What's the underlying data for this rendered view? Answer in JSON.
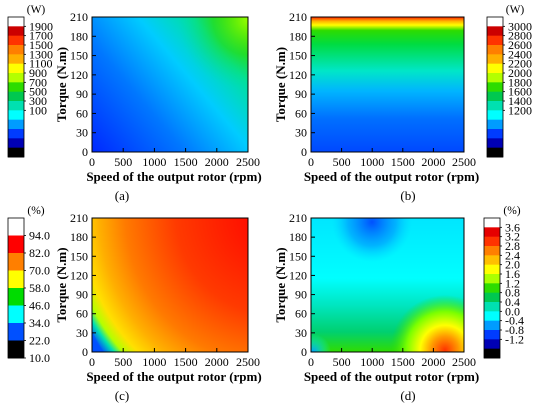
{
  "chart_data": [
    {
      "type": "heatmap",
      "panel_label": "(a)",
      "xlabel": "Speed of the output rotor (rpm)",
      "ylabel": "Torque (N.m)",
      "x_ticks": [
        "0",
        "500",
        "1000",
        "1500",
        "2000",
        "2500"
      ],
      "y_ticks": [
        "0",
        "30",
        "60",
        "90",
        "120",
        "150",
        "180",
        "210"
      ],
      "xlim": [
        0,
        2500
      ],
      "ylim": [
        0,
        210
      ],
      "colorbar": {
        "unit": "(W)",
        "position": "left",
        "ticks": [
          "1900",
          "1700",
          "1500",
          "1300",
          "1100",
          "900",
          "700",
          "500",
          "300",
          "100"
        ],
        "colors": [
          "#ffffff",
          "#cc0000",
          "#ff3300",
          "#ff7f00",
          "#ffb000",
          "#ffff00",
          "#b4ff00",
          "#2ddc00",
          "#00c850",
          "#00e0b0",
          "#00ffff",
          "#009cff",
          "#003cff",
          "#0000b4",
          "#000000"
        ]
      }
    },
    {
      "type": "heatmap",
      "panel_label": "(b)",
      "xlabel": "Speed of the output rotor (rpm)",
      "ylabel": "Torque (N.m)",
      "x_ticks": [
        "0",
        "500",
        "1000",
        "1500",
        "2000",
        "2500"
      ],
      "y_ticks": [
        "0",
        "30",
        "60",
        "90",
        "120",
        "150",
        "180",
        "210"
      ],
      "xlim": [
        0,
        2500
      ],
      "ylim": [
        0,
        210
      ],
      "colorbar": {
        "unit": "(W)",
        "position": "right",
        "ticks": [
          "3000",
          "2800",
          "2600",
          "2400",
          "2200",
          "2000",
          "1800",
          "1600",
          "1400",
          "1200"
        ],
        "colors": [
          "#ffffff",
          "#cc0000",
          "#ff3300",
          "#ff7f00",
          "#ffb000",
          "#ffff00",
          "#b4ff00",
          "#2ddc00",
          "#00c850",
          "#00e0b0",
          "#00ffff",
          "#009cff",
          "#003cff",
          "#0000b4",
          "#000000"
        ]
      }
    },
    {
      "type": "heatmap",
      "panel_label": "(c)",
      "xlabel": "Speed of the output rotor (rpm)",
      "ylabel": "Torque (N.m)",
      "x_ticks": [
        "0",
        "500",
        "1000",
        "1500",
        "2000",
        "2500"
      ],
      "y_ticks": [
        "0",
        "30",
        "60",
        "90",
        "120",
        "150",
        "180",
        "210"
      ],
      "xlim": [
        0,
        2500
      ],
      "ylim": [
        0,
        210
      ],
      "colorbar": {
        "unit": "(%)",
        "position": "left",
        "ticks": [
          "94.0",
          "82.0",
          "70.0",
          "58.0",
          "46.0",
          "34.0",
          "22.0",
          "10.0"
        ],
        "colors": [
          "#ffffff",
          "#ff0000",
          "#ff7f00",
          "#ffff00",
          "#00dc00",
          "#00ffff",
          "#0050ff",
          "#000000"
        ]
      }
    },
    {
      "type": "heatmap",
      "panel_label": "(d)",
      "xlabel": "Speed of the output rotor (rpm)",
      "ylabel": "Torque (N.m)",
      "x_ticks": [
        "0",
        "500",
        "1000",
        "1500",
        "2000",
        "2500"
      ],
      "y_ticks": [
        "0",
        "30",
        "60",
        "90",
        "120",
        "150",
        "180",
        "210"
      ],
      "xlim": [
        0,
        2500
      ],
      "ylim": [
        0,
        210
      ],
      "colorbar": {
        "unit": "(%)",
        "position": "right",
        "ticks": [
          "3.6",
          "3.2",
          "2.8",
          "2.4",
          "2.0",
          "1.6",
          "1.2",
          "0.8",
          "0.4",
          "0.0",
          "-0.4",
          "-0.8",
          "-1.2"
        ],
        "colors": [
          "#ffffff",
          "#e60000",
          "#ff3300",
          "#ff7f00",
          "#ffbf00",
          "#ffff00",
          "#aaff00",
          "#2ddc00",
          "#00c850",
          "#00e0b0",
          "#00ffff",
          "#009cff",
          "#003cff",
          "#0000b4",
          "#000000"
        ]
      }
    }
  ]
}
